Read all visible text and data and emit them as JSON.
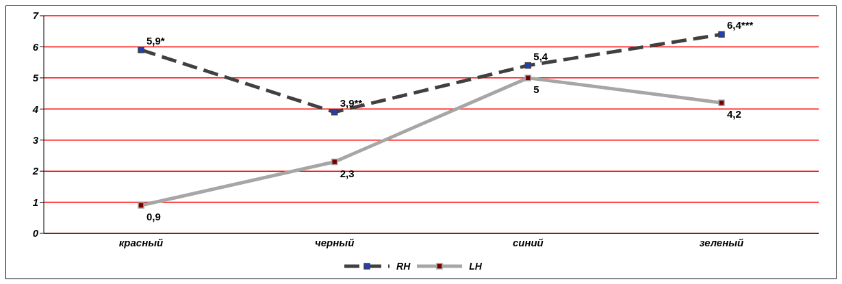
{
  "chart_data": {
    "type": "line",
    "categories": [
      "красный",
      "черный",
      "синий",
      "зеленый"
    ],
    "series": [
      {
        "name": "RH",
        "color": "#404040",
        "line_style": "dashed",
        "values": [
          5.9,
          3.9,
          5.4,
          6.4
        ],
        "value_labels": [
          "5,9*",
          "3,9**",
          "5,4",
          "6,4***"
        ]
      },
      {
        "name": "LH",
        "color": "#a6a6a6",
        "line_style": "solid",
        "values": [
          0.9,
          2.3,
          5,
          4.2
        ],
        "value_labels": [
          "0,9",
          "2,3",
          "5",
          "4,2"
        ]
      }
    ],
    "ylim": [
      0,
      7
    ],
    "yticks": [
      0,
      1,
      2,
      3,
      4,
      5,
      6,
      7
    ],
    "grid": "y",
    "legend": "bottom",
    "marker": "square"
  }
}
